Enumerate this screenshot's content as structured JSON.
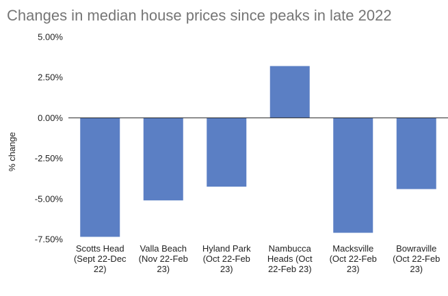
{
  "chart_data": {
    "type": "bar",
    "title": "Changes in median house prices since peaks in late 2022",
    "xlabel": "",
    "ylabel": "% change",
    "ylim": [
      -7.5,
      5.0
    ],
    "yticks": [
      5.0,
      2.5,
      0.0,
      -2.5,
      -5.0,
      -7.5
    ],
    "ytick_labels": [
      "5.00%",
      "2.50%",
      "0.00%",
      "-2.50%",
      "-5.00%",
      "-7.50%"
    ],
    "grid": false,
    "categories": [
      "Scotts Head (Sept 22-Dec 22)",
      "Valla Beach (Nov 22-Feb 23)",
      "Hyland Park (Oct 22-Feb 23)",
      "Nambucca Heads (Oct 22-Feb 23)",
      "Macksville (Oct 22-Feb 23)",
      "Bowraville (Oct 22-Feb 23)"
    ],
    "category_lines": [
      [
        "Scotts Head",
        "(Sept 22-Dec",
        "22)"
      ],
      [
        "Valla Beach",
        "(Nov 22-Feb",
        "23)"
      ],
      [
        "Hyland Park",
        "(Oct 22-Feb",
        "23)"
      ],
      [
        "Nambucca",
        "Heads (Oct",
        "22-Feb 23)"
      ],
      [
        "Macksville",
        "(Oct 22-Feb",
        "23)"
      ],
      [
        "Bowraville",
        "(Oct 22-Feb",
        "23)"
      ]
    ],
    "series": [
      {
        "name": "% change",
        "values": [
          -7.35,
          -5.1,
          -4.25,
          3.2,
          -7.1,
          -4.4
        ]
      }
    ],
    "colors": {
      "bar": "#5b7fc4",
      "axis": "#222222",
      "title": "#757575"
    }
  }
}
